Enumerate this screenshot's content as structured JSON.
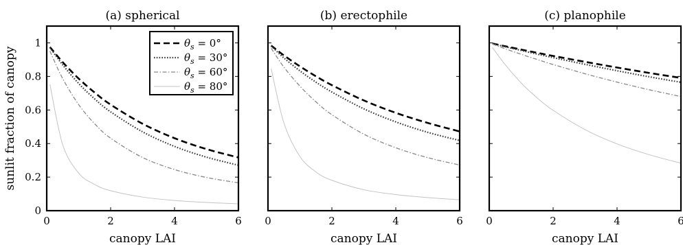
{
  "chart_data": [
    {
      "type": "line",
      "title": "(a) spherical",
      "xlabel": "canopy LAI",
      "ylabel": "sunlit fraction of canopy",
      "xlim": [
        0,
        6
      ],
      "ylim": [
        0,
        1.1
      ],
      "xticks": [
        "0",
        "2",
        "4",
        "6"
      ],
      "yticks": [
        "0",
        "0.2",
        "0.4",
        "0.6",
        "0.8",
        "1"
      ],
      "legend": "top-right",
      "x": [
        0.1,
        0.5,
        1,
        1.5,
        2,
        3,
        4,
        5,
        6
      ],
      "series": [
        {
          "name": "θs = 0°",
          "style": "dashed-black",
          "values": [
            0.975,
            0.885,
            0.787,
            0.704,
            0.632,
            0.518,
            0.432,
            0.367,
            0.317
          ]
        },
        {
          "name": "θs = 30°",
          "style": "dotted-darkgray",
          "values": [
            0.972,
            0.869,
            0.758,
            0.666,
            0.589,
            0.47,
            0.383,
            0.319,
            0.271
          ]
        },
        {
          "name": "θs = 60°",
          "style": "dashdot-gray",
          "values": [
            0.951,
            0.787,
            0.632,
            0.518,
            0.432,
            0.317,
            0.245,
            0.198,
            0.166
          ]
        },
        {
          "name": "θs = 80°",
          "style": "solid-lightgray",
          "values": [
            0.753,
            0.393,
            0.224,
            0.156,
            0.119,
            0.081,
            0.061,
            0.049,
            0.041
          ]
        }
      ]
    },
    {
      "type": "line",
      "title": "(b) erectophile",
      "xlabel": "canopy LAI",
      "xlim": [
        0,
        6
      ],
      "ylim": [
        0,
        1.1
      ],
      "xticks": [
        "0",
        "2",
        "4",
        "6"
      ],
      "x": [
        0.1,
        0.5,
        1,
        1.5,
        2,
        3,
        4,
        5,
        6
      ],
      "series": [
        {
          "name": "θs = 0°",
          "style": "dashed-black",
          "values": [
            0.984,
            0.925,
            0.86,
            0.801,
            0.748,
            0.657,
            0.583,
            0.523,
            0.472
          ]
        },
        {
          "name": "θs = 30°",
          "style": "dotted-darkgray",
          "values": [
            0.981,
            0.91,
            0.833,
            0.766,
            0.707,
            0.607,
            0.529,
            0.467,
            0.418
          ]
        },
        {
          "name": "θs = 60°",
          "style": "dashdot-gray",
          "values": [
            0.968,
            0.855,
            0.742,
            0.649,
            0.572,
            0.456,
            0.375,
            0.316,
            0.272
          ]
        },
        {
          "name": "θs = 80°",
          "style": "solid-lightgray",
          "values": [
            0.846,
            0.522,
            0.323,
            0.231,
            0.181,
            0.125,
            0.096,
            0.078,
            0.065
          ]
        }
      ]
    },
    {
      "type": "line",
      "title": "(c) planophile",
      "xlabel": "canopy LAI",
      "xlim": [
        0,
        6
      ],
      "ylim": [
        0,
        1.1
      ],
      "xticks": [
        "0",
        "2",
        "4",
        "6"
      ],
      "x": [
        0.1,
        0.5,
        1,
        1.5,
        2,
        3,
        4,
        5,
        6
      ],
      "series": [
        {
          "name": "θs = 0°",
          "style": "dashed-black",
          "values": [
            0.996,
            0.98,
            0.96,
            0.941,
            0.922,
            0.887,
            0.853,
            0.821,
            0.791
          ]
        },
        {
          "name": "θs = 30°",
          "style": "dotted-darkgray",
          "values": [
            0.996,
            0.977,
            0.955,
            0.933,
            0.912,
            0.872,
            0.834,
            0.798,
            0.765
          ]
        },
        {
          "name": "θs = 60°",
          "style": "dashdot-gray",
          "values": [
            0.993,
            0.965,
            0.932,
            0.901,
            0.871,
            0.816,
            0.766,
            0.721,
            0.68
          ]
        },
        {
          "name": "θs = 80°",
          "style": "solid-lightgray",
          "values": [
            0.972,
            0.87,
            0.761,
            0.672,
            0.598,
            0.483,
            0.398,
            0.334,
            0.283
          ]
        }
      ]
    }
  ],
  "legend": [
    {
      "symbol": "θ",
      "sub": "s",
      "rest": " = 0°",
      "style": "dashed-black"
    },
    {
      "symbol": "θ",
      "sub": "s",
      "rest": " = 30°",
      "style": "dotted-darkgray"
    },
    {
      "symbol": "θ",
      "sub": "s",
      "rest": " = 60°",
      "style": "dashdot-gray"
    },
    {
      "symbol": "θ",
      "sub": "s",
      "rest": " = 80°",
      "style": "solid-lightgray"
    }
  ],
  "styles": {
    "dashed-black": {
      "color": "#000000",
      "width": 2.6,
      "dash": "9 5"
    },
    "dotted-darkgray": {
      "color": "#3a3a3a",
      "width": 2.2,
      "dash": "1.6 2.2"
    },
    "dashdot-gray": {
      "color": "#888888",
      "width": 1.3,
      "dash": "6 2.5 1.5 2.5"
    },
    "solid-lightgray": {
      "color": "#c4c4c4",
      "width": 1.0,
      "dash": ""
    }
  }
}
